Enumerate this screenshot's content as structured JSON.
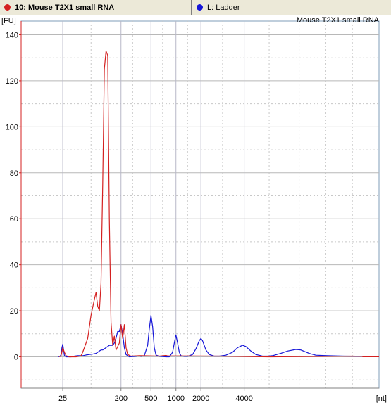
{
  "tabs": [
    {
      "label": "10: Mouse T2X1 small  RNA",
      "dot_color": "#d42020",
      "active": true
    },
    {
      "label": "L: Ladder",
      "dot_color": "#1515d8",
      "active": false
    }
  ],
  "chart_data": {
    "type": "line",
    "title": "Mouse T2X1 small  RNA",
    "ylabel": "[FU]",
    "xlabel": "[nt]",
    "ylim": [
      -14,
      145
    ],
    "y_ticks": [
      0,
      20,
      40,
      60,
      80,
      100,
      120,
      140
    ],
    "x_ticks": [
      "25",
      "200",
      "500",
      "1000",
      "2000",
      "4000"
    ],
    "grid": true,
    "series": [
      {
        "color": "#d42020",
        "points": [
          [
            24,
            0
          ],
          [
            25,
            0.5
          ],
          [
            26,
            4
          ],
          [
            27,
            2
          ],
          [
            28,
            0.5
          ],
          [
            30,
            0
          ],
          [
            34,
            0
          ],
          [
            37,
            0.5
          ],
          [
            38,
            2
          ],
          [
            41,
            8
          ],
          [
            43,
            18
          ],
          [
            45,
            25
          ],
          [
            46,
            28
          ],
          [
            47,
            22
          ],
          [
            48,
            20
          ],
          [
            49,
            32
          ],
          [
            50,
            75
          ],
          [
            51,
            125
          ],
          [
            52,
            133
          ],
          [
            53,
            131
          ],
          [
            54,
            60
          ],
          [
            55,
            15
          ],
          [
            56,
            5
          ],
          [
            57,
            9
          ],
          [
            58,
            3
          ],
          [
            60,
            6
          ],
          [
            61,
            14
          ],
          [
            62,
            8
          ],
          [
            63,
            14
          ],
          [
            64,
            4
          ],
          [
            65,
            1
          ],
          [
            67,
            0.3
          ],
          [
            72,
            0.5
          ],
          [
            73,
            0.5
          ],
          [
            84,
            0.3
          ],
          [
            88,
            0.6
          ],
          [
            89,
            0.4
          ],
          [
            120,
            0.3
          ],
          [
            150,
            0
          ],
          [
            200,
            0.3
          ],
          [
            206,
            0.2
          ]
        ]
      },
      {
        "color": "#1515d8",
        "points": [
          [
            23,
            0
          ],
          [
            24.5,
            0.3
          ],
          [
            25,
            1
          ],
          [
            25.5,
            4
          ],
          [
            26,
            5.5
          ],
          [
            26.5,
            3
          ],
          [
            27,
            0.6
          ],
          [
            28,
            0
          ],
          [
            31,
            0
          ],
          [
            33,
            0.3
          ],
          [
            35,
            0.5
          ],
          [
            38,
            0.5
          ],
          [
            40,
            0.8
          ],
          [
            42,
            1
          ],
          [
            44,
            1.2
          ],
          [
            46,
            1.5
          ],
          [
            47,
            2
          ],
          [
            48,
            2.5
          ],
          [
            49,
            3
          ],
          [
            50,
            3
          ],
          [
            51,
            3.5
          ],
          [
            52,
            4
          ],
          [
            53,
            4.5
          ],
          [
            54,
            5
          ],
          [
            56,
            5
          ],
          [
            57,
            6
          ],
          [
            58,
            8
          ],
          [
            59,
            11
          ],
          [
            60,
            11
          ],
          [
            61,
            14
          ],
          [
            62,
            10
          ],
          [
            63,
            4
          ],
          [
            64,
            1
          ],
          [
            66,
            0
          ],
          [
            70,
            0.2
          ],
          [
            72,
            0.5
          ],
          [
            73,
            0.2
          ],
          [
            75,
            0.5
          ],
          [
            77,
            5
          ],
          [
            78,
            12
          ],
          [
            79,
            18
          ],
          [
            80,
            13
          ],
          [
            81,
            4
          ],
          [
            82,
            0.8
          ],
          [
            84,
            0.2
          ],
          [
            88,
            0
          ],
          [
            90,
            0
          ],
          [
            92,
            2
          ],
          [
            93,
            6
          ],
          [
            94,
            9.5
          ],
          [
            95,
            6
          ],
          [
            96,
            2
          ],
          [
            97,
            0.5
          ],
          [
            99,
            0.2
          ],
          [
            101,
            0.2
          ],
          [
            104,
            1
          ],
          [
            106,
            3.5
          ],
          [
            108,
            7
          ],
          [
            109,
            8
          ],
          [
            110,
            7
          ],
          [
            112,
            3
          ],
          [
            114,
            1
          ],
          [
            117,
            0.3
          ],
          [
            120,
            0.3
          ],
          [
            124,
            0.7
          ],
          [
            128,
            2
          ],
          [
            131,
            4
          ],
          [
            134,
            5
          ],
          [
            136,
            4.5
          ],
          [
            139,
            2.5
          ],
          [
            142,
            1
          ],
          [
            146,
            0.3
          ],
          [
            149,
            0.3
          ],
          [
            152,
            0.5
          ],
          [
            157,
            1.5
          ],
          [
            161,
            2.5
          ],
          [
            166,
            3.2
          ],
          [
            169,
            3
          ],
          [
            174,
            1.5
          ],
          [
            178,
            0.7
          ],
          [
            185,
            0.5
          ],
          [
            195,
            0.3
          ],
          [
            205,
            0.2
          ],
          [
            207,
            0.2
          ]
        ]
      }
    ]
  }
}
